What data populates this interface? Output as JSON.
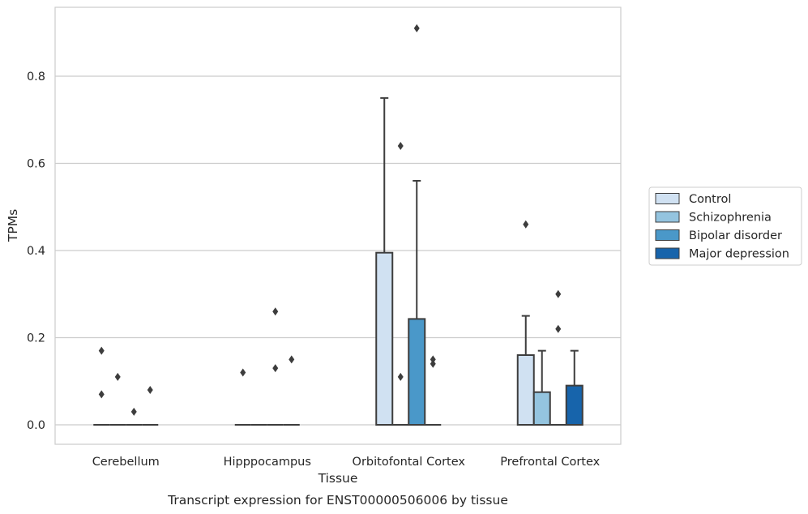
{
  "chart_data": {
    "type": "box",
    "xlabel": "Tissue",
    "ylabel": "TPMs",
    "caption": "Transcript expression for ENST00000506006 by tissue",
    "ylim": [
      -0.045,
      0.955
    ],
    "yticks": [
      "0.0",
      "0.2",
      "0.4",
      "0.6",
      "0.8"
    ],
    "grid": "horizontal",
    "legend_position": "right",
    "categories": [
      "Cerebellum",
      "Hipppocampus",
      "Orbitofontal Cortex",
      "Prefrontal Cortex"
    ],
    "series": [
      {
        "name": "Control",
        "color": "#d0e1f2",
        "boxes": [
          {
            "q1": 0,
            "median": 0,
            "q3": 0,
            "whisker_low": 0,
            "whisker_high": 0,
            "outliers": [
              0.17,
              0.07
            ]
          },
          {
            "q1": 0,
            "median": 0,
            "q3": 0,
            "whisker_low": 0,
            "whisker_high": 0,
            "outliers": [
              0.12
            ]
          },
          {
            "q1": 0,
            "median": 0,
            "q3": 0.395,
            "whisker_low": 0,
            "whisker_high": 0.75,
            "outliers": []
          },
          {
            "q1": 0,
            "median": 0,
            "q3": 0.16,
            "whisker_low": 0,
            "whisker_high": 0.25,
            "outliers": [
              0.46
            ]
          }
        ]
      },
      {
        "name": "Schizophrenia",
        "color": "#94c4df",
        "boxes": [
          {
            "q1": 0,
            "median": 0,
            "q3": 0,
            "whisker_low": 0,
            "whisker_high": 0,
            "outliers": [
              0.11
            ]
          },
          {
            "q1": 0,
            "median": 0,
            "q3": 0,
            "whisker_low": 0,
            "whisker_high": 0,
            "outliers": []
          },
          {
            "q1": 0,
            "median": 0,
            "q3": 0,
            "whisker_low": 0,
            "whisker_high": 0,
            "outliers": [
              0.64,
              0.11
            ]
          },
          {
            "q1": 0,
            "median": 0,
            "q3": 0.075,
            "whisker_low": 0,
            "whisker_high": 0.17,
            "outliers": []
          }
        ]
      },
      {
        "name": "Bipolar disorder",
        "color": "#4a98c9",
        "boxes": [
          {
            "q1": 0,
            "median": 0,
            "q3": 0,
            "whisker_low": 0,
            "whisker_high": 0,
            "outliers": [
              0.03
            ]
          },
          {
            "q1": 0,
            "median": 0,
            "q3": 0,
            "whisker_low": 0,
            "whisker_high": 0,
            "outliers": [
              0.26,
              0.13
            ]
          },
          {
            "q1": 0,
            "median": 0,
            "q3": 0.243,
            "whisker_low": 0,
            "whisker_high": 0.56,
            "outliers": [
              0.91
            ]
          },
          {
            "q1": 0,
            "median": 0,
            "q3": 0,
            "whisker_low": 0,
            "whisker_high": 0,
            "outliers": [
              0.3,
              0.22
            ]
          }
        ]
      },
      {
        "name": "Major depression",
        "color": "#1764ab",
        "boxes": [
          {
            "q1": 0,
            "median": 0,
            "q3": 0,
            "whisker_low": 0,
            "whisker_high": 0,
            "outliers": [
              0.08
            ]
          },
          {
            "q1": 0,
            "median": 0,
            "q3": 0,
            "whisker_low": 0,
            "whisker_high": 0,
            "outliers": [
              0.15
            ]
          },
          {
            "q1": 0,
            "median": 0,
            "q3": 0,
            "whisker_low": 0,
            "whisker_high": 0,
            "outliers": [
              0.15,
              0.14
            ]
          },
          {
            "q1": 0,
            "median": 0,
            "q3": 0.09,
            "whisker_low": 0,
            "whisker_high": 0.17,
            "outliers": []
          }
        ]
      }
    ]
  }
}
